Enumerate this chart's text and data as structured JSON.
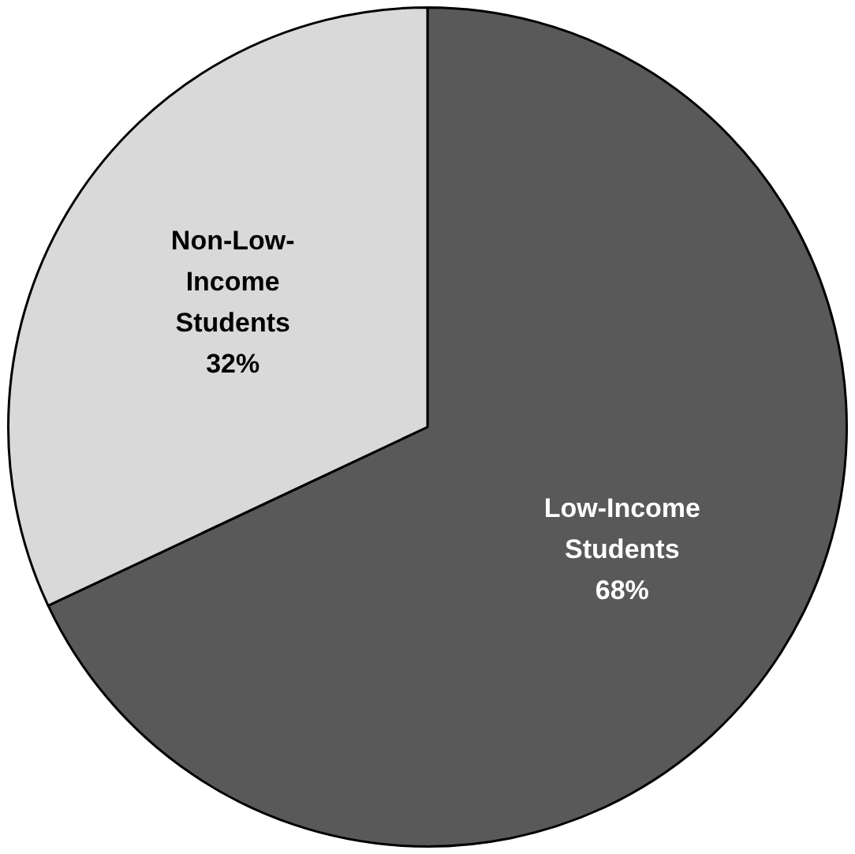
{
  "chart_data": {
    "type": "pie",
    "categories": [
      "Low-Income Students",
      "Non-Low-Income Students"
    ],
    "values": [
      68,
      32
    ],
    "colors": [
      "#595959",
      "#d9d9d9"
    ],
    "value_labels": [
      "68%",
      "32%"
    ],
    "legend": false
  }
}
